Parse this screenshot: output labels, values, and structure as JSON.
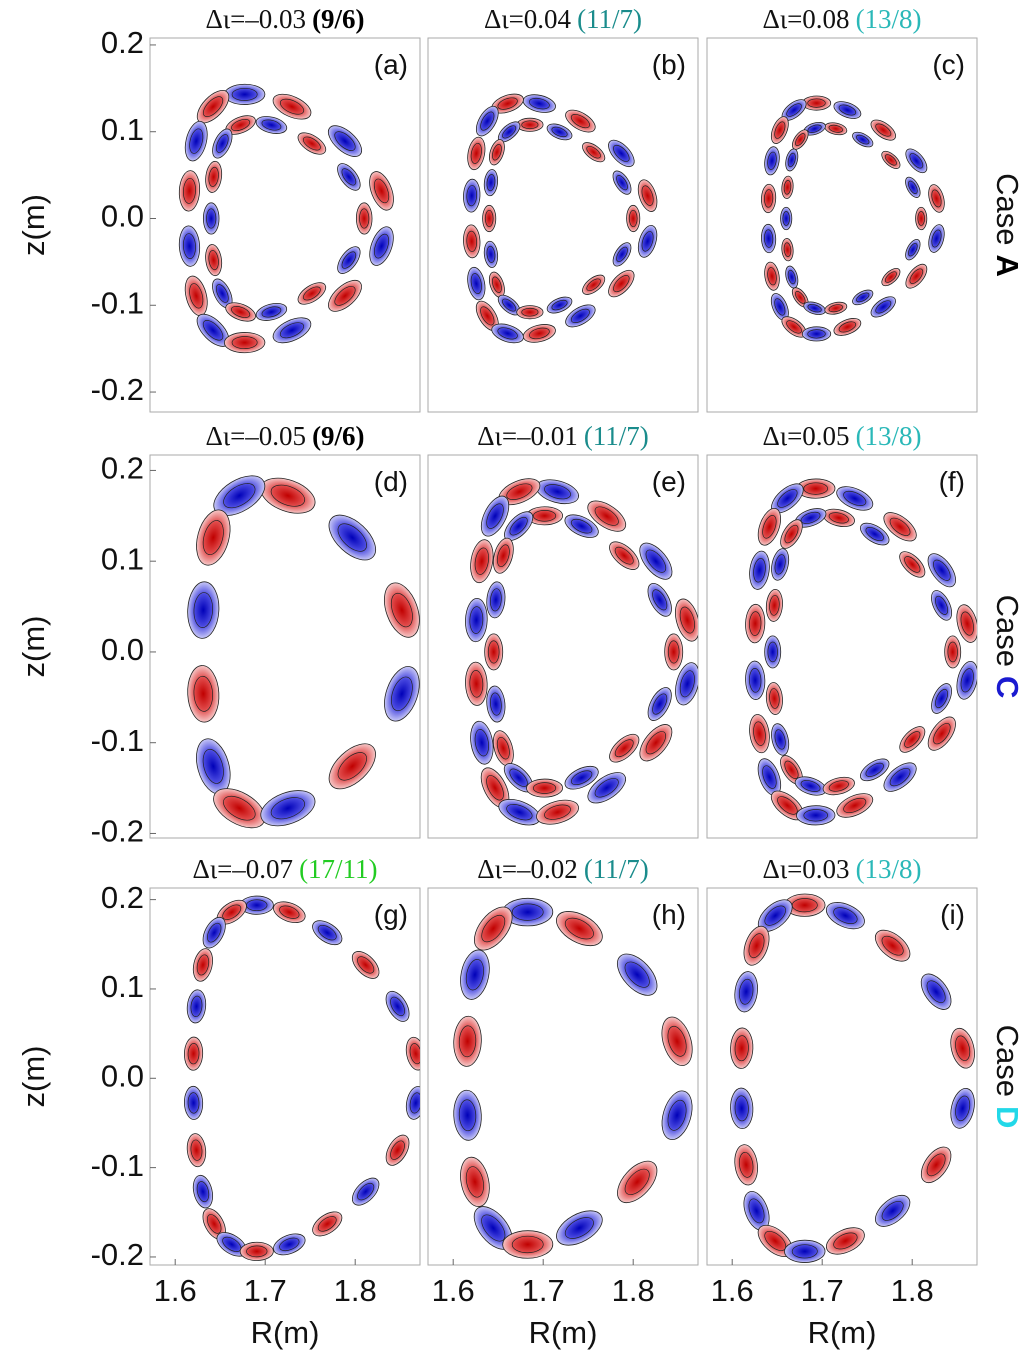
{
  "chart_data": [
    {
      "type": "contour",
      "title": "Δι=–0.03",
      "mode": "(9/6)",
      "mode_color": "#000000",
      "mode_weight": "bold",
      "panel_label": "(a)",
      "xlim": [
        1.572,
        1.872
      ],
      "ylim": [
        -0.223,
        0.208
      ],
      "ylabel": "z(m)",
      "yticks": [
        0.2,
        0.1,
        {
          "value": 0,
          "label": "0.0"
        },
        -0.1,
        -0.2
      ]
    },
    {
      "type": "contour",
      "title": "Δι=0.04",
      "mode": "(11/7)",
      "mode_color": "#1a8c8c",
      "panel_label": "(b)",
      "xlim": [
        1.572,
        1.872
      ],
      "ylim": [
        -0.223,
        0.208
      ]
    },
    {
      "type": "contour",
      "title": "Δι=0.08",
      "mode": "(13/8)",
      "mode_color": "#2ab8b8",
      "panel_label": "(c)",
      "xlim": [
        1.572,
        1.872
      ],
      "ylim": [
        -0.223,
        0.208
      ]
    },
    {
      "type": "contour",
      "title": "Δι=–0.05",
      "mode": "(9/6)",
      "mode_color": "#000000",
      "mode_weight": "bold",
      "panel_label": "(d)",
      "xlim": [
        1.572,
        1.872
      ],
      "ylim": [
        -0.205,
        0.217
      ],
      "ylabel": "z(m)",
      "yticks": [
        0.2,
        0.1,
        {
          "value": 0,
          "label": "0.0"
        },
        -0.1,
        -0.2
      ]
    },
    {
      "type": "contour",
      "title": "Δι=–0.01",
      "mode": "(11/7)",
      "mode_color": "#1a8c8c",
      "panel_label": "(e)",
      "xlim": [
        1.572,
        1.872
      ],
      "ylim": [
        -0.205,
        0.217
      ]
    },
    {
      "type": "contour",
      "title": "Δι=0.05",
      "mode": "(13/8)",
      "mode_color": "#2ab8b8",
      "panel_label": "(f)",
      "xlim": [
        1.572,
        1.872
      ],
      "ylim": [
        -0.205,
        0.217
      ]
    },
    {
      "type": "contour",
      "title": "Δι=–0.07",
      "mode": "(17/11)",
      "mode_color": "#22cc22",
      "panel_label": "(g)",
      "xlim": [
        1.572,
        1.872
      ],
      "ylim": [
        -0.209,
        0.213
      ],
      "ylabel": "z(m)",
      "yticks": [
        0.2,
        0.1,
        {
          "value": 0,
          "label": "0.0"
        },
        -0.1,
        -0.2
      ],
      "xlabel": "R(m)",
      "xticks": [
        1.6,
        1.7,
        1.8
      ]
    },
    {
      "type": "contour",
      "title": "Δι=–0.02",
      "mode": "(11/7)",
      "mode_color": "#1a8c8c",
      "panel_label": "(h)",
      "xlim": [
        1.572,
        1.872
      ],
      "ylim": [
        -0.209,
        0.213
      ],
      "xlabel": "R(m)",
      "xticks": [
        1.6,
        1.7,
        1.8
      ]
    },
    {
      "type": "contour",
      "title": "Δι=0.03",
      "mode": "(13/8)",
      "mode_color": "#2ab8b8",
      "panel_label": "(i)",
      "xlim": [
        1.572,
        1.872
      ],
      "ylim": [
        -0.209,
        0.213
      ],
      "xlabel": "R(m)",
      "xticks": [
        1.6,
        1.7,
        1.8
      ]
    }
  ],
  "cases": [
    {
      "prefix": "Case",
      "letter": "A",
      "color": "#000000"
    },
    {
      "prefix": "Case",
      "letter": "C",
      "color": "#1a1ad0"
    },
    {
      "prefix": "Case",
      "letter": "D",
      "color": "#22d8e8"
    }
  ]
}
